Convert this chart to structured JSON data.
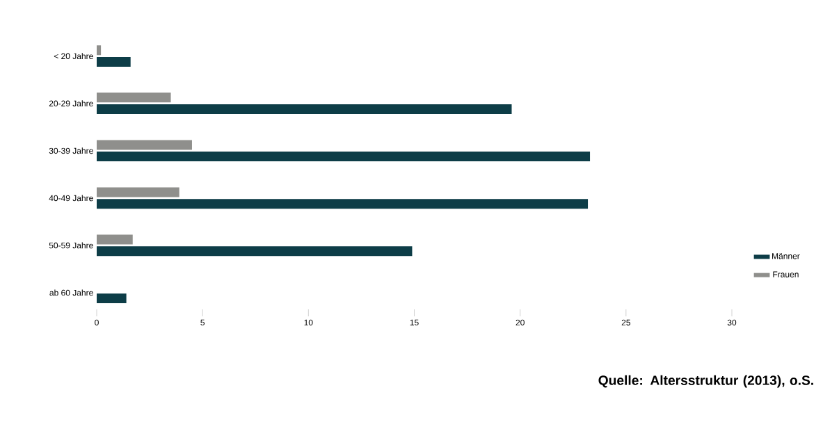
{
  "chart_data": {
    "type": "bar",
    "orientation": "horizontal",
    "categories": [
      "< 20 Jahre",
      "20-29 Jahre",
      "30-39 Jahre",
      "40-49 Jahre",
      "50-59 Jahre",
      "ab 60 Jahre"
    ],
    "series": [
      {
        "name": "Männer",
        "color": "#0d3d47",
        "values": [
          1.6,
          19.6,
          23.3,
          23.2,
          14.9,
          1.4
        ]
      },
      {
        "name": "Frauen",
        "color": "#8f8f8c",
        "values": [
          0.2,
          3.5,
          4.5,
          3.9,
          1.7,
          0
        ]
      }
    ],
    "xlim": [
      0,
      30
    ],
    "xticks": [
      0,
      5,
      10,
      15,
      20,
      25,
      30
    ],
    "grid": false,
    "legend": "right",
    "annotations": [
      "Quelle: Altersstruktur (2013), o.S."
    ]
  }
}
